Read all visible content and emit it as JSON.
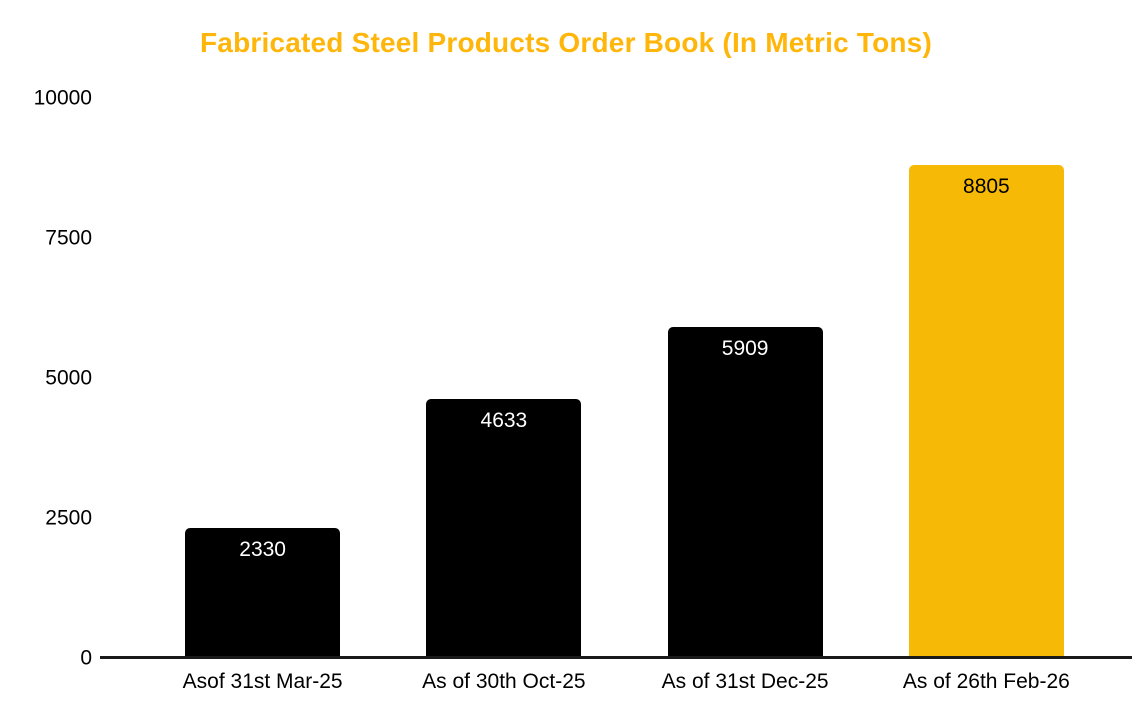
{
  "title": "Fabricated Steel Products Order Book (In Metric Tons)",
  "colors": {
    "title": "#FFB60B",
    "axis_line": "#1A1A1A",
    "tick_text": "#000000",
    "background": "#FFFFFF"
  },
  "chart_data": {
    "type": "bar",
    "title": "Fabricated Steel Products Order Book (In Metric Tons)",
    "categories": [
      "Asof 31st Mar-25",
      "As of 30th Oct-25",
      "As of 31st Dec-25",
      "As of 26th Feb-26"
    ],
    "values": [
      2330,
      4633,
      5909,
      8805
    ],
    "value_labels": [
      "2330",
      "4633",
      "5909",
      "8805"
    ],
    "bar_colors": [
      "#000000",
      "#000000",
      "#000000",
      "#F6B905"
    ],
    "value_label_colors": [
      "#FFFFFF",
      "#FFFFFF",
      "#FFFFFF",
      "#000000"
    ],
    "xlabel": "",
    "ylabel": "",
    "ylim": [
      0,
      10000
    ],
    "yticks": [
      "0",
      "2500",
      "5000",
      "7500",
      "10000"
    ],
    "grid": false,
    "legend": false
  }
}
